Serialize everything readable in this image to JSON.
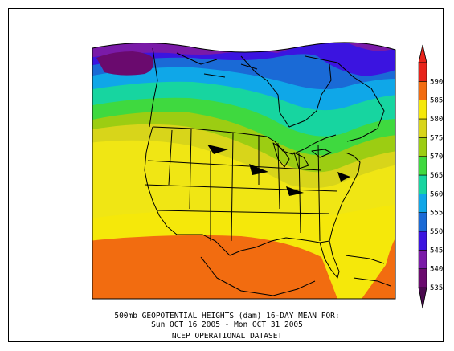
{
  "caption": {
    "line1": "500mb GEOPOTENTIAL HEIGHTS (dam)    16-DAY MEAN FOR:",
    "line2": "Sun OCT 16 2005 - Mon OCT 31 2005",
    "line3": "NCEP OPERATIONAL DATASET"
  },
  "colorbar": {
    "labels": [
      "535",
      "540",
      "545",
      "550",
      "555",
      "560",
      "565",
      "570",
      "575",
      "580",
      "585",
      "590"
    ],
    "colors": [
      "#6a0a6e",
      "#7a1aa8",
      "#3b14e0",
      "#1a6ad6",
      "#0fa7e8",
      "#17d5a0",
      "#3fd93f",
      "#9ccd12",
      "#d8d51a",
      "#f5e80a",
      "#f26c10",
      "#e8231a"
    ],
    "top_arrow_color": "#e8231a",
    "bottom_arrow_color": "#4a0a4e"
  }
}
